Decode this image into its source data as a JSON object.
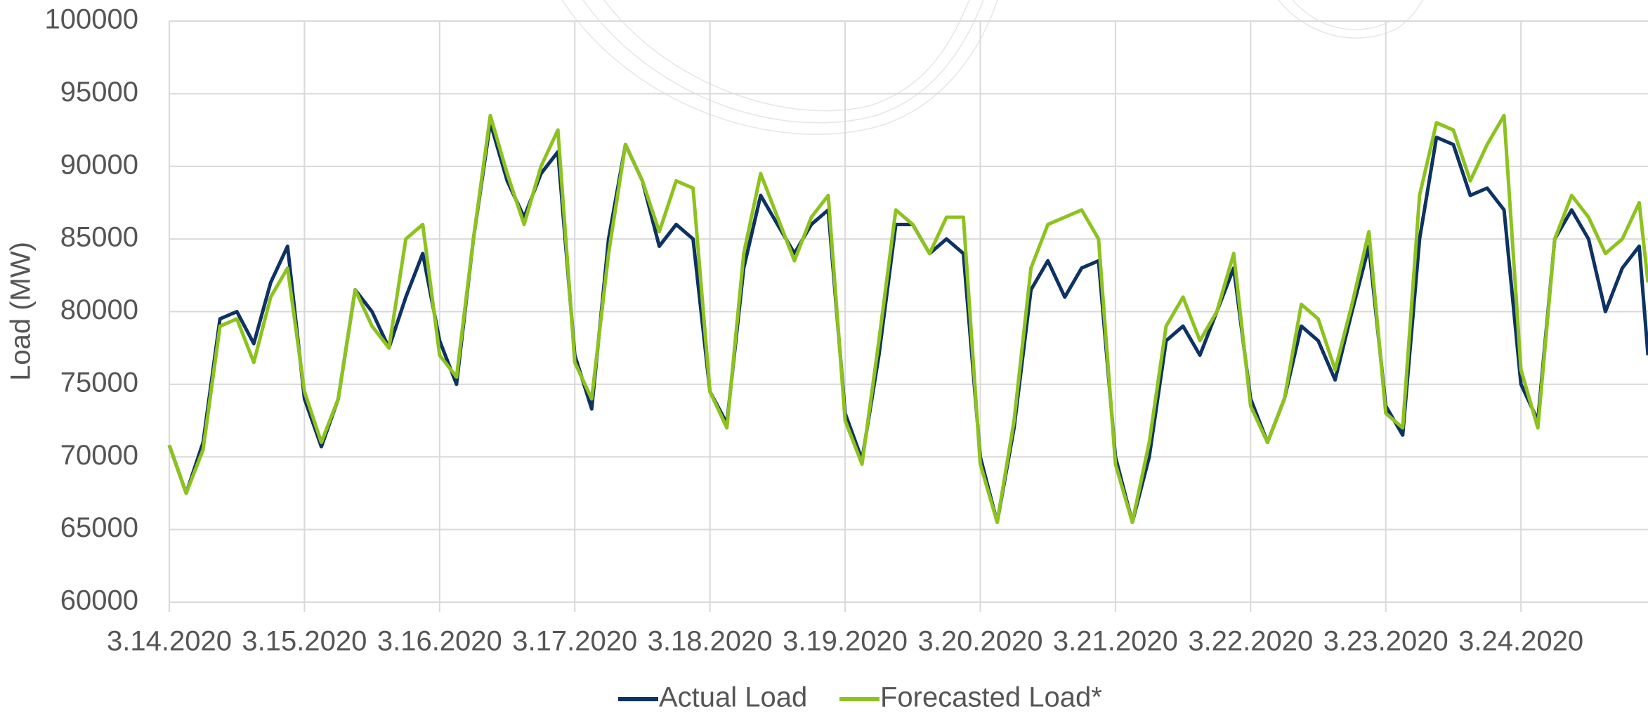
{
  "chart_data": {
    "type": "line",
    "y_label": "Load (MW)",
    "x": [
      0,
      0.125,
      0.25,
      0.375,
      0.5,
      0.625,
      0.75,
      0.875,
      1,
      1.125,
      1.25,
      1.375,
      1.5,
      1.625,
      1.75,
      1.875,
      2,
      2.125,
      2.25,
      2.375,
      2.5,
      2.625,
      2.75,
      2.875,
      3,
      3.125,
      3.25,
      3.375,
      3.5,
      3.625,
      3.75,
      3.875,
      4,
      4.125,
      4.25,
      4.375,
      4.5,
      4.625,
      4.75,
      4.875,
      5,
      5.125,
      5.25,
      5.375,
      5.5,
      5.625,
      5.75,
      5.875,
      6,
      6.125,
      6.25,
      6.375,
      6.5,
      6.625,
      6.75,
      6.875,
      7,
      7.125,
      7.25,
      7.375,
      7.5,
      7.625,
      7.75,
      7.875,
      8,
      8.125,
      8.25,
      8.375,
      8.5,
      8.625,
      8.75,
      8.875,
      9,
      9.125,
      9.25,
      9.375,
      9.5,
      9.625,
      9.75,
      9.875,
      10,
      10.125,
      10.25,
      10.375,
      10.5,
      10.625,
      10.75,
      10.875,
      10.94
    ],
    "series": [
      {
        "name": "Actual Load",
        "color": "#0d3263",
        "values": [
          70800,
          67500,
          71000,
          79500,
          80000,
          77800,
          82000,
          84500,
          74000,
          70700,
          74000,
          81500,
          80000,
          77500,
          81000,
          84000,
          78000,
          75000,
          85000,
          93000,
          89000,
          86500,
          89500,
          91000,
          77000,
          73300,
          85000,
          91500,
          89000,
          84500,
          86000,
          85000,
          74500,
          72300,
          83000,
          88000,
          86000,
          84000,
          86000,
          87000,
          73000,
          69800,
          77000,
          86000,
          86000,
          84000,
          85000,
          84000,
          70000,
          65500,
          72000,
          81500,
          83500,
          81000,
          83000,
          83500,
          70000,
          65500,
          70000,
          78000,
          79000,
          77000,
          80000,
          83000,
          74000,
          71000,
          74000,
          79000,
          78000,
          75300,
          80000,
          84500,
          73500,
          71500,
          85000,
          92000,
          91500,
          88000,
          88500,
          87000,
          75000,
          72500,
          85000,
          87000,
          85000,
          80000,
          83000,
          84500,
          77000
        ]
      },
      {
        "name": "Forecasted Load*",
        "color": "#8dc21f",
        "values": [
          70800,
          67500,
          70500,
          79000,
          79500,
          76500,
          81000,
          83000,
          74500,
          71000,
          74000,
          81500,
          79000,
          77500,
          85000,
          86000,
          77000,
          75500,
          85000,
          93500,
          89500,
          86000,
          90000,
          92500,
          76500,
          74000,
          84000,
          91500,
          89000,
          85500,
          89000,
          88500,
          74500,
          72000,
          84000,
          89500,
          86500,
          83500,
          86500,
          88000,
          72500,
          69500,
          78000,
          87000,
          86000,
          84000,
          86500,
          86500,
          69500,
          65500,
          72500,
          83000,
          86000,
          86500,
          87000,
          85000,
          69500,
          65500,
          71000,
          79000,
          81000,
          78000,
          80000,
          84000,
          73500,
          71000,
          74000,
          80500,
          79500,
          76000,
          80500,
          85500,
          73000,
          72000,
          88000,
          93000,
          92500,
          89000,
          91500,
          93500,
          76000,
          72000,
          85000,
          88000,
          86500,
          84000,
          85000,
          87500,
          82000
        ]
      }
    ],
    "xlim": [
      0,
      10.94
    ],
    "xticks": [
      {
        "value": 0,
        "label": "3.14.2020"
      },
      {
        "value": 1,
        "label": "3.15.2020"
      },
      {
        "value": 2,
        "label": "3.16.2020"
      },
      {
        "value": 3,
        "label": "3.17.2020"
      },
      {
        "value": 4,
        "label": "3.18.2020"
      },
      {
        "value": 5,
        "label": "3.19.2020"
      },
      {
        "value": 6,
        "label": "3.20.2020"
      },
      {
        "value": 7,
        "label": "3.21.2020"
      },
      {
        "value": 8,
        "label": "3.22.2020"
      },
      {
        "value": 9,
        "label": "3.23.2020"
      },
      {
        "value": 10,
        "label": "3.24.2020"
      }
    ],
    "ylim": [
      60000,
      100000
    ],
    "yticks": [
      60000,
      65000,
      70000,
      75000,
      80000,
      85000,
      90000,
      95000,
      100000
    ],
    "grid": true,
    "legend": "bottom"
  }
}
